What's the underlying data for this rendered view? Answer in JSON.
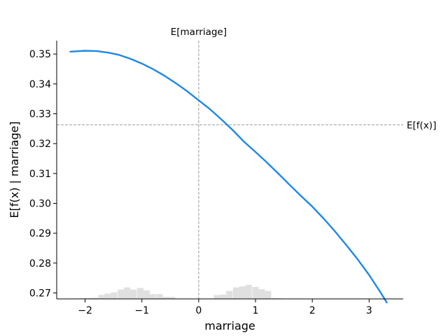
{
  "chart_data": {
    "type": "line",
    "xlabel": "marriage",
    "ylabel": "E[f(x) | marriage]",
    "xlim": [
      -2.5,
      3.6
    ],
    "ylim": [
      0.268,
      0.3545
    ],
    "x_ticks": [
      -2,
      -1,
      0,
      1,
      2,
      3
    ],
    "x_tick_labels": [
      "−2",
      "−1",
      "0",
      "1",
      "2",
      "3"
    ],
    "y_ticks": [
      0.27,
      0.28,
      0.29,
      0.3,
      0.31,
      0.32,
      0.33,
      0.34,
      0.35
    ],
    "y_tick_labels": [
      "0.27",
      "0.28",
      "0.29",
      "0.30",
      "0.31",
      "0.32",
      "0.33",
      "0.34",
      "0.35"
    ],
    "line_color": "#1e88e5",
    "reference_line_color": "#999999",
    "histogram_color": "#e0e0e0",
    "expected_value": {
      "label": "E[f(x)]",
      "value": 0.3263
    },
    "feature_mean": {
      "label": "E[marriage]",
      "value": 0.0
    },
    "series": [
      {
        "x": [
          -2.26,
          -2.0,
          -1.8,
          -1.6,
          -1.4,
          -1.2,
          -1.0,
          -0.8,
          -0.6,
          -0.4,
          -0.2,
          0.0,
          0.2,
          0.4,
          0.6,
          0.8,
          1.0,
          1.2,
          1.4,
          1.6,
          1.8,
          2.0,
          2.2,
          2.4,
          2.6,
          2.8,
          3.0,
          3.2,
          3.31
        ],
        "y": [
          0.3508,
          0.3511,
          0.351,
          0.3505,
          0.3497,
          0.3484,
          0.3468,
          0.3449,
          0.3427,
          0.3402,
          0.3375,
          0.3345,
          0.3315,
          0.3281,
          0.3245,
          0.3206,
          0.3172,
          0.3137,
          0.31,
          0.3062,
          0.3025,
          0.2989,
          0.2949,
          0.2906,
          0.286,
          0.2812,
          0.276,
          0.2702,
          0.2668
        ]
      }
    ],
    "histogram": {
      "bin_width": 0.113,
      "bins": [
        {
          "x": -2.05,
          "h": 0.25
        },
        {
          "x": -1.94,
          "h": 0.35
        },
        {
          "x": -1.83,
          "h": 0.45
        },
        {
          "x": -1.71,
          "h": 1.5
        },
        {
          "x": -1.6,
          "h": 2.0
        },
        {
          "x": -1.49,
          "h": 2.5
        },
        {
          "x": -1.37,
          "h": 3.5
        },
        {
          "x": -1.26,
          "h": 4.3
        },
        {
          "x": -1.15,
          "h": 3.5
        },
        {
          "x": -1.03,
          "h": 4.1
        },
        {
          "x": -0.92,
          "h": 3.2
        },
        {
          "x": -0.81,
          "h": 1.8
        },
        {
          "x": -0.69,
          "h": 1.8
        },
        {
          "x": -0.58,
          "h": 0.8
        },
        {
          "x": -0.47,
          "h": 0.8
        },
        {
          "x": 0.32,
          "h": 1.4
        },
        {
          "x": 0.43,
          "h": 1.6
        },
        {
          "x": 0.54,
          "h": 3.0
        },
        {
          "x": 0.66,
          "h": 4.3
        },
        {
          "x": 0.77,
          "h": 4.7
        },
        {
          "x": 0.88,
          "h": 5.3
        },
        {
          "x": 1.0,
          "h": 4.5
        },
        {
          "x": 1.11,
          "h": 3.6
        },
        {
          "x": 1.22,
          "h": 3.0
        },
        {
          "x": 1.34,
          "h": 0.35
        },
        {
          "x": 1.45,
          "h": 0.2
        }
      ]
    }
  }
}
